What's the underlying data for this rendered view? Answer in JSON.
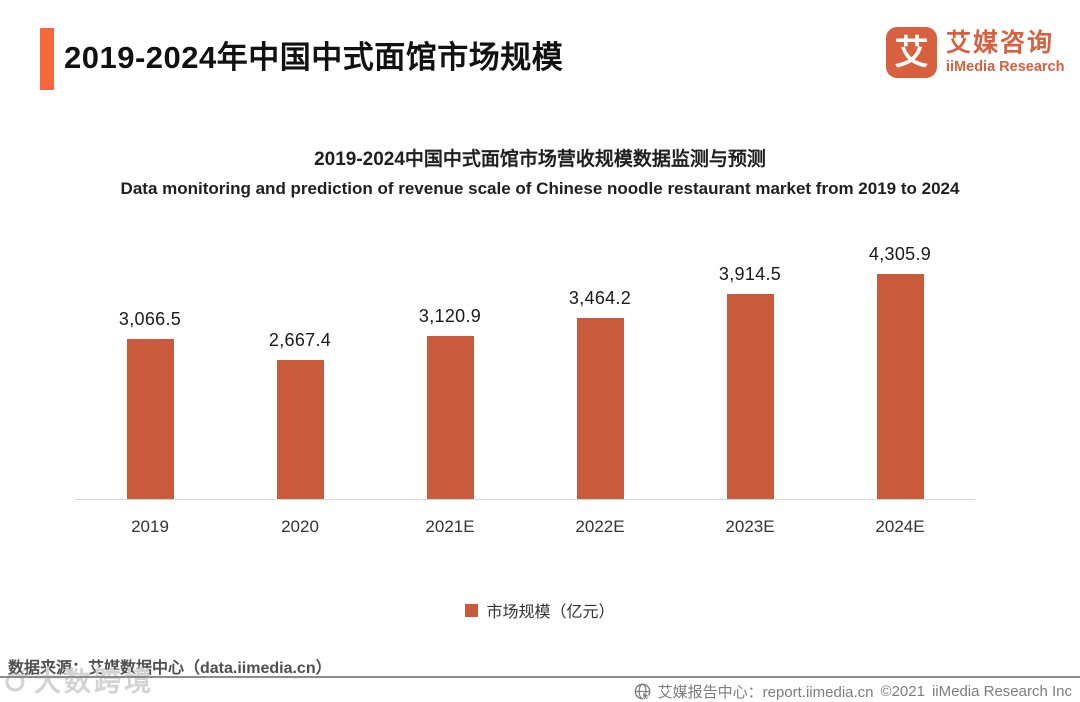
{
  "page": {
    "title": "2019-2024年中国中式面馆市场规模"
  },
  "logo": {
    "glyph": "艾",
    "name_cn": "艾媒咨询",
    "name_en": "iiMedia Research"
  },
  "chart_data": {
    "type": "bar",
    "title": "2019-2024中国中式面馆市场营收规模数据监测与预测",
    "subtitle": "Data monitoring and prediction of revenue scale of Chinese noodle restaurant market from 2019 to 2024",
    "categories": [
      "2019",
      "2020",
      "2021E",
      "2022E",
      "2023E",
      "2024E"
    ],
    "values": [
      3066.5,
      2667.4,
      3120.9,
      3464.2,
      3914.5,
      4305.9
    ],
    "value_labels": [
      "3,066.5",
      "2,667.4",
      "3,120.9",
      "3,464.2",
      "3,914.5",
      "4,305.9"
    ],
    "unit": "亿元",
    "legend": [
      "市场规模（亿元）"
    ],
    "legend_position": "bottom",
    "grid": false,
    "ylim": [
      0,
      4500
    ],
    "bar_color": "#C95A3B"
  },
  "footer": {
    "source": "数据来源：艾媒数据中心（data.iimedia.cn）",
    "report_center": "艾媒报告中心：report.iimedia.cn",
    "copyright": "©2021",
    "company": "iiMedia Research Inc",
    "watermark": "大数跨境"
  },
  "colors": {
    "accent": "#F4683C",
    "logo": "#D7603E",
    "bar": "#C95A3B"
  }
}
